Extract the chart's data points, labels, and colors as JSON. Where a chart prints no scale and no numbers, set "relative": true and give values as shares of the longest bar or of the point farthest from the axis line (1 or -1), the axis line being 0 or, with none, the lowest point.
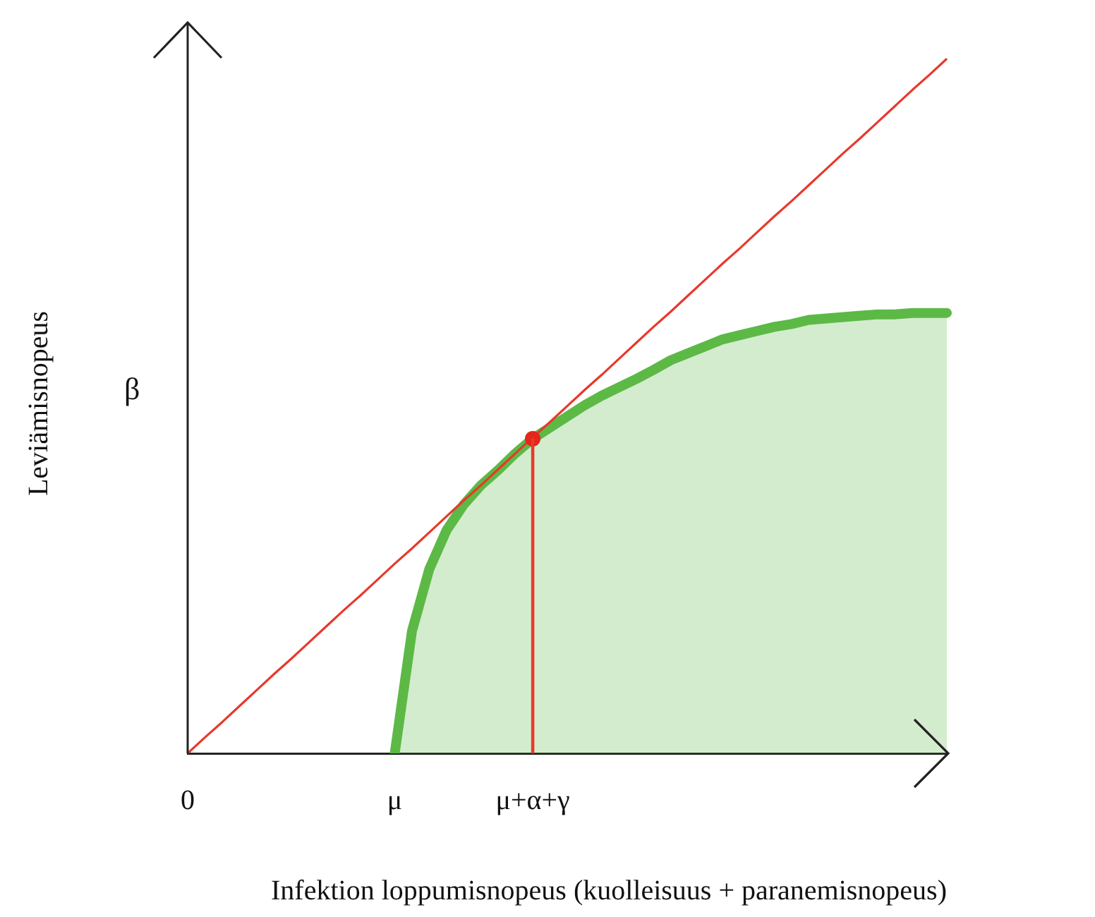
{
  "chart_data": {
    "type": "area",
    "relative": true,
    "xlabel": "Infektion loppumisnopeus (kuolleisuus + paranemisnopeus)",
    "ylabel": "Leviämisnopeus",
    "categories": [
      "0",
      null,
      null,
      null,
      null,
      null,
      null,
      null,
      null,
      null,
      null,
      null,
      "μ",
      null,
      null,
      null,
      null,
      null,
      null,
      null,
      "μ+α+γ",
      null,
      null,
      null,
      null,
      null,
      null,
      null,
      null,
      null,
      null,
      null,
      null,
      null,
      null,
      null,
      null,
      null,
      null,
      null,
      null,
      null,
      null,
      null,
      null
    ],
    "annotations": [
      "β"
    ],
    "series": [
      {
        "color": "#5cb946",
        "values": [
          null,
          null,
          null,
          null,
          null,
          null,
          null,
          null,
          null,
          null,
          null,
          null,
          0,
          0.176,
          0.265,
          0.321,
          0.358,
          0.386,
          0.408,
          0.432,
          0.453,
          0.469,
          0.485,
          0.501,
          0.515,
          0.527,
          0.539,
          0.552,
          0.566,
          0.576,
          0.586,
          0.596,
          0.602,
          0.608,
          0.614,
          0.618,
          0.624,
          0.626,
          0.628,
          0.63,
          0.632,
          0.632,
          0.634,
          0.634,
          0.634
        ]
      },
      {
        "type": "line",
        "color": "#e8392c",
        "values": [
          0,
          0.023,
          0.045,
          0.068,
          0.091,
          0.114,
          0.136,
          0.159,
          0.182,
          0.205,
          0.227,
          0.25,
          0.273,
          0.295,
          0.318,
          0.341,
          0.364,
          0.386,
          0.409,
          0.432,
          0.455,
          0.477,
          0.5,
          0.523,
          0.545,
          0.568,
          0.591,
          0.614,
          0.636,
          0.659,
          0.682,
          0.705,
          0.727,
          0.75,
          0.773,
          0.795,
          0.818,
          0.841,
          0.864,
          0.886,
          0.909,
          0.932,
          0.955,
          0.977,
          1
        ]
      },
      {
        "type": "bar",
        "color": "#e8392c",
        "values": [
          null,
          null,
          null,
          null,
          null,
          null,
          null,
          null,
          null,
          null,
          null,
          null,
          null,
          null,
          null,
          null,
          null,
          null,
          null,
          null,
          0.453,
          null,
          null,
          null,
          null,
          null,
          null,
          null,
          null,
          null,
          null,
          null,
          null,
          null,
          null,
          null,
          null,
          null,
          null,
          null,
          null,
          null,
          null,
          null,
          null
        ]
      },
      {
        "type": "scatter",
        "color": "#e3271b",
        "values": [
          null,
          null,
          null,
          null,
          null,
          null,
          null,
          null,
          null,
          null,
          null,
          null,
          null,
          null,
          null,
          null,
          null,
          null,
          null,
          null,
          0.453,
          null,
          null,
          null,
          null,
          null,
          null,
          null,
          null,
          null,
          null,
          null,
          null,
          null,
          null,
          null,
          null,
          null,
          null,
          null,
          null,
          null,
          null,
          null,
          null
        ]
      }
    ],
    "grid": false,
    "legend": false
  }
}
